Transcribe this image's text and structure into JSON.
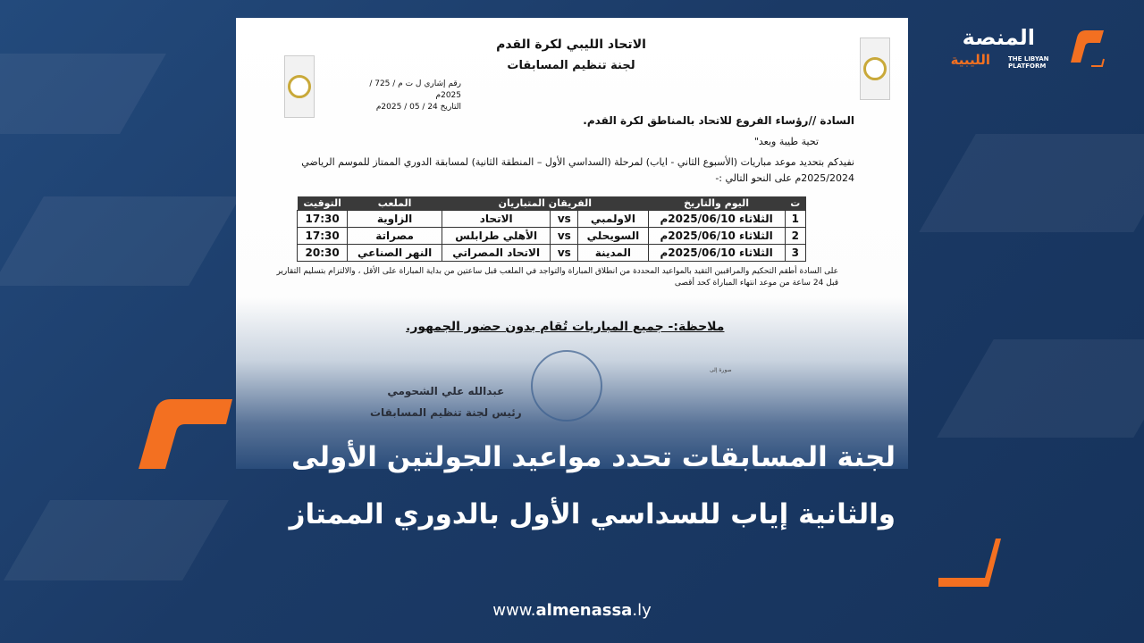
{
  "brand": {
    "name_ar": "المنصة",
    "name_ar_sub": "الليبية",
    "name_en_1": "THE LIBYAN",
    "name_en_2": "PLATFORM",
    "accent": "#f37021"
  },
  "document": {
    "org": "الاتحاد الليبي لكرة القدم",
    "committee": "لجنة تنظيم المسابقات",
    "ref_no": "رقم إشاري ل ت م / 725 / 2025م",
    "date": "التاريخ 24 / 05 / 2025م",
    "addressee": "السادة //رؤساء الفروع للاتحاد بالمناطق لكرة القدم.",
    "greeting": "تحية طيبة وبعد\"",
    "body_1": "نفيدكم بتحديد موعد مباريات (الأسبوع الثاني - اياب) لمرحلة (السداسي الأول – المنطقة الثانية) لمسابقة الدوري الممتاز للموسم الرياضي",
    "body_2": "2025/2024م على النحو التالي :-",
    "table": {
      "headers": [
        "ت",
        "اليوم والتاريخ",
        "الفريقان المتباريان",
        "",
        "",
        "الملعب",
        "التوقيت"
      ],
      "rows": [
        [
          "1",
          "الثلاثاء 2025/06/10م",
          "الاولمبي",
          "vs",
          "الاتحاد",
          "الزاوية",
          "17:30"
        ],
        [
          "2",
          "الثلاثاء 2025/06/10م",
          "السويحلي",
          "vs",
          "الأهلي طرابلس",
          "مصراتة",
          "17:30"
        ],
        [
          "3",
          "الثلاثاء 2025/06/10م",
          "المدينة",
          "vs",
          "الاتحاد المصراتي",
          "النهر الصناعي",
          "20:30"
        ]
      ]
    },
    "instructions": "على السادة أطقم التحكيم والمراقبين التقيد بالمواعيد المحددة من انطلاق المباراة والتواجد في الملعب قبل ساعتين من بداية المباراة على الأقل ، والالتزام بتسليم التقارير قبل 24 ساعة من موعد انتهاء المباراة كحد أقصى",
    "note": "ملاحظة:- جميع المباريات تُقام بدون حضور الجمهور.",
    "signatory": "عبدالله علي الشحومي",
    "signatory_title": "رئيس لجنة تنظيم المسابقات",
    "cc_title": "صورة إلى"
  },
  "headline": {
    "line1": "لجنة المسابقات تحدد مواعيد الجولتين الأولى",
    "line2": "والثانية إياب للسداسي الأول بالدوري الممتاز"
  },
  "footer": {
    "url_prefix": "www.",
    "url_main": "almenassa",
    "url_suffix": ".ly"
  }
}
